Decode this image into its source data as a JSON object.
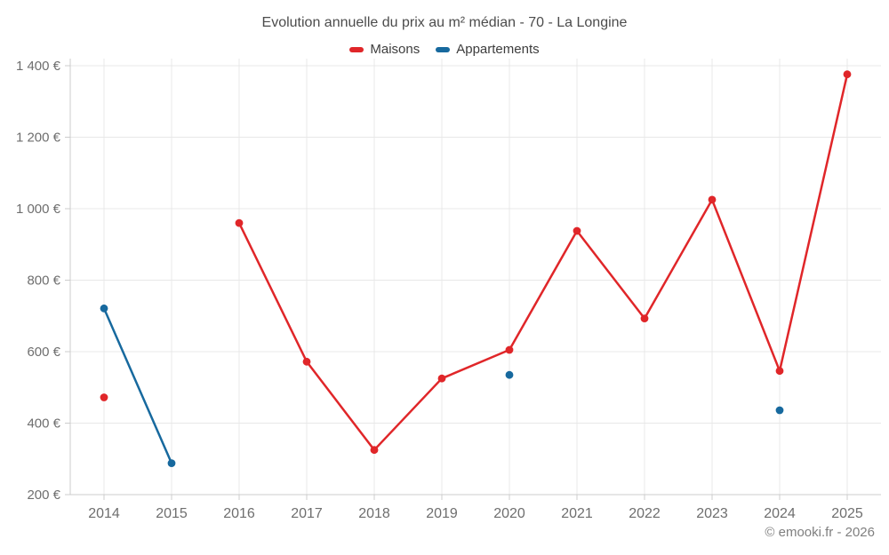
{
  "header": {
    "title": "Evolution annuelle du prix au m² médian - 70 - La Longine"
  },
  "chart_data": {
    "type": "line",
    "title": "Evolution annuelle du prix au m² médian - 70 - La Longine",
    "categories": [
      "2014",
      "2015",
      "2016",
      "2017",
      "2018",
      "2019",
      "2020",
      "2021",
      "2022",
      "2023",
      "2024",
      "2025"
    ],
    "series": [
      {
        "name": "Maisons",
        "color": "#e02629",
        "values": [
          472,
          null,
          960,
          572,
          325,
          525,
          605,
          938,
          693,
          1025,
          546,
          1376
        ]
      },
      {
        "name": "Appartements",
        "color": "#17699e",
        "values": [
          721,
          288,
          null,
          null,
          null,
          null,
          535,
          null,
          null,
          null,
          436,
          null
        ]
      }
    ],
    "y_axis": {
      "min": 200,
      "max": 1400,
      "tick_step": 200,
      "tick_labels": [
        "200 €",
        "400 €",
        "600 €",
        "800 €",
        "1 000 €",
        "1 200 €",
        "1 400 €"
      ],
      "unit": "€"
    },
    "x_axis": {
      "label": ""
    },
    "grid": true,
    "legend_position": "top",
    "colors": {
      "grid": "#e8e8e8",
      "axis": "#cccccc",
      "tick_text": "#6e6e6e"
    }
  },
  "footer": {
    "credit": "© emooki.fr - 2026"
  }
}
